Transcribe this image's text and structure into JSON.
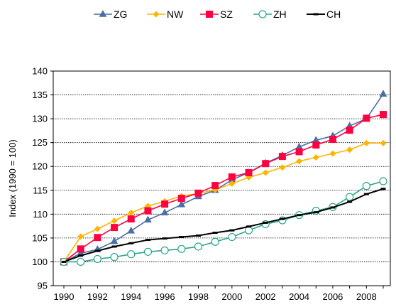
{
  "chart_data": {
    "type": "line",
    "title": "",
    "xlabel": "",
    "ylabel": "Index (1990 = 100)",
    "ylim": [
      95,
      140
    ],
    "xlim": [
      1990,
      2009
    ],
    "yticks": [
      "95",
      "100",
      "105",
      "110",
      "115",
      "120",
      "125",
      "130",
      "135",
      "140"
    ],
    "xticks": [
      "1990",
      "1992",
      "1994",
      "1996",
      "1998",
      "2000",
      "2002",
      "2004",
      "2006",
      "2008"
    ],
    "grid": "horizontal dashed",
    "legend_position": "top",
    "x": [
      1990,
      1991,
      1992,
      1993,
      1994,
      1995,
      1996,
      1997,
      1998,
      1999,
      2000,
      2001,
      2002,
      2003,
      2004,
      2005,
      2006,
      2007,
      2008,
      2009
    ],
    "series": [
      {
        "name": "ZG",
        "color": "#4a6fa5",
        "marker": "triangle",
        "values": [
          100.0,
          101.8,
          102.6,
          104.3,
          106.5,
          108.8,
          110.3,
          112.0,
          113.7,
          115.0,
          117.2,
          118.7,
          120.7,
          122.3,
          124.1,
          125.5,
          126.4,
          128.5,
          130.0,
          135.2
        ]
      },
      {
        "name": "NW",
        "color": "#ffb400",
        "marker": "diamond",
        "values": [
          100.0,
          105.3,
          106.9,
          108.6,
          110.3,
          111.7,
          112.7,
          113.8,
          114.3,
          115.1,
          116.4,
          117.7,
          118.7,
          119.8,
          121.1,
          121.9,
          122.7,
          123.5,
          124.9,
          124.9
        ]
      },
      {
        "name": "SZ",
        "color": "#ff0040",
        "marker": "square",
        "values": [
          100.0,
          102.7,
          105.1,
          107.2,
          109.0,
          110.7,
          112.1,
          113.3,
          114.4,
          116.0,
          117.8,
          118.7,
          120.6,
          122.1,
          123.1,
          124.5,
          125.7,
          127.6,
          130.1,
          130.9
        ]
      },
      {
        "name": "ZH",
        "color": "#2aa58a",
        "marker": "circle-open",
        "values": [
          100.0,
          100.0,
          100.6,
          101.0,
          101.6,
          102.1,
          102.4,
          102.7,
          103.2,
          104.2,
          105.2,
          106.6,
          107.9,
          108.7,
          109.8,
          110.7,
          111.5,
          113.6,
          115.9,
          116.9
        ]
      },
      {
        "name": "CH",
        "color": "#000000",
        "marker": "dash",
        "values": [
          100.0,
          101.3,
          102.3,
          103.2,
          103.9,
          104.6,
          104.9,
          105.2,
          105.5,
          106.1,
          106.6,
          107.4,
          108.2,
          109.0,
          109.8,
          110.4,
          111.4,
          112.6,
          114.2,
          115.3
        ]
      }
    ]
  }
}
